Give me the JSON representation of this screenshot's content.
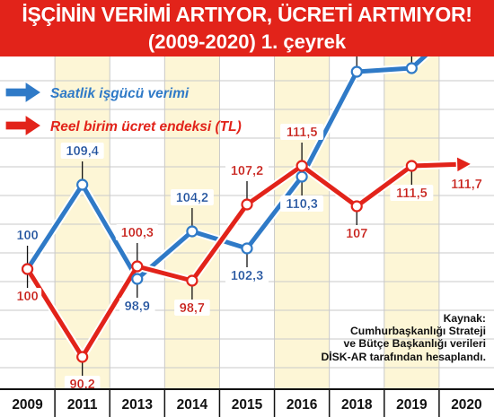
{
  "header": {
    "title": "İŞÇİNİN VERİMİ ARTIYOR, ÜCRETİ ARTMIYOR!",
    "subtitle": "(2009-2020) 1. çeyrek"
  },
  "source": {
    "label": "Kaynak:",
    "lines": [
      "Cumhurbaşkanlığı Strateji",
      "ve Bütçe Başkanlığı verileri",
      "DİSK-AR tarafından hesaplandı."
    ]
  },
  "colors": {
    "blue": "#2f7ac7",
    "red": "#e2231a",
    "band": "#fdf6d6",
    "grid": "#c9c9c9"
  },
  "chart_data": {
    "type": "line",
    "title": "İŞÇİNİN VERİMİ ARTIYOR, ÜCRETİ ARTMIYOR!",
    "subtitle": "(2009-2020) 1. çeyrek",
    "categories": [
      "2009",
      "2011",
      "2013",
      "2014",
      "2015",
      "2016",
      "2018",
      "2019",
      "2020"
    ],
    "series": [
      {
        "name": "Saatlik işgücü verimi",
        "color": "#2f7ac7",
        "values": [
          100,
          109.4,
          98.9,
          104.2,
          102.3,
          110.3,
          122,
          122.4,
          128
        ]
      },
      {
        "name": "Reel birim ücret endeksi (TL)",
        "color": "#e2231a",
        "values": [
          100,
          90.2,
          100.3,
          98.7,
          107.2,
          111.5,
          107,
          111.5,
          111.7
        ]
      }
    ],
    "ylim": [
      88,
      130
    ],
    "legend": "top-left",
    "grid": true
  }
}
